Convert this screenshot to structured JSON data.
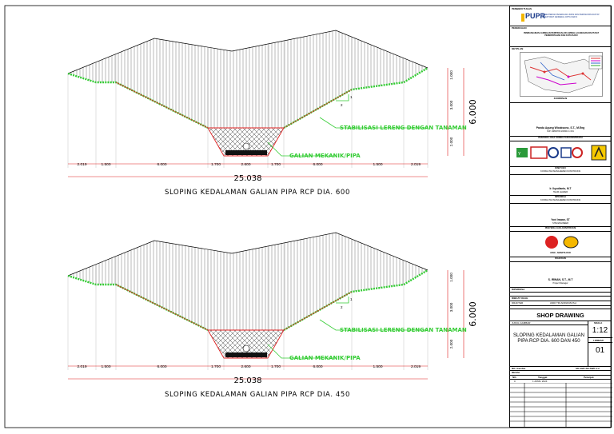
{
  "drawings": [
    {
      "caption": "SLOPING KEDALAMAN GALIAN PIPA RCP DIA. 600",
      "label_stabilisasi": "STABILISASI LERENG DENGAN TANAMAN",
      "label_galian": "GALIAN MEKANIK/PIPA",
      "slope_ratio_v": "1",
      "slope_ratio_h": "2",
      "dims_bottom": [
        "2.019",
        "1.500",
        "6.000",
        "1.700",
        "2.600",
        "1.700",
        "6.000",
        "1.500",
        "2.019"
      ],
      "dim_total": "25.038",
      "dims_right": [
        "1.000",
        "3.000",
        "2.000"
      ],
      "dim_height_total": "6.000"
    },
    {
      "caption": "SLOPING KEDALAMAN GALIAN PIPA RCP DIA. 450",
      "label_stabilisasi": "STABILISASI LERENG DENGAN TANAMAN",
      "label_galian": "GALIAN MEKANIK/PIPA",
      "slope_ratio_v": "1",
      "slope_ratio_h": "2",
      "dims_bottom": [
        "2.019",
        "1.500",
        "6.000",
        "1.700",
        "2.600",
        "1.700",
        "6.000",
        "1.500",
        "2.019"
      ],
      "dim_total": "25.038",
      "dims_right": [
        "1.000",
        "3.000",
        "2.000"
      ],
      "dim_height_total": "6.000"
    }
  ],
  "title_block": {
    "pemberi_tugas_label": "PEMBERI TUGAS",
    "logo_text": "PUPR",
    "ministry_text": "KEMENTERIAN PEKERJAAN UMUM DAN PERUMAHAN RAKYAT DIREKTORAT JENDERAL CIPTA KARYA",
    "pekerjaan_label": "PEKERJAAN",
    "pekerjaan_text": "PEMBANGUNAN JARINGAN PERPIPAAN AIR LIMBAH & KAWASAN IKN PUSAT PEMERINTAHAN DAN KOTA BARU",
    "keyplan_label": "KEYPLAN",
    "keyplan_caption": "KOORDINASI",
    "approver1_name": "Pandu Agung Wicaksono, S.T., M.Eng",
    "approver1_id": "NIP. 19800709 200604 1 001",
    "approver1_role": "PENYEDIA JASA KONSULTAN KONSTRUKSI",
    "disetujui_label": "DISETUJUI",
    "consultant_role": "KONSULTAN MANAJEMEN KONSTRUKSI",
    "approver2_name": "Ir. Ikyudianto, M.T",
    "approver2_title": "TEAM LEADER",
    "diperiksa_label": "DIPERIKSA",
    "consultant_role2": "KONSULTAN MANAJEMEN KONSTRUKSI",
    "approver3_name": "Yoni Irawan, ST",
    "approver3_title": "SITE ENGINEER",
    "contractor_role": "PENYEDIA JASA KONSTRUKSI",
    "contractor_name": "ADHI - AMARTA KSO",
    "dialog_label": "DIAJUKAN",
    "approver4_name": "S. IRWAN, S.T., M.T",
    "approver4_title": "Project Manager",
    "diperiksa2_label": "DIPERIKSA",
    "dibuat_label": "DIBUAT OLEH",
    "drafter_label": "DRAFTER",
    "drafter_name": "ANDI TRI ADRIANSYAH",
    "shop_drawing": "SHOP DRAWING",
    "judul_gambar_label": "JUDUL GAMBAR",
    "skala_label": "SKALA",
    "title_text": "SLOPING KEDALAMAN GALIAN PIPA RCP DIA. 600 DAN 450",
    "scale_value": "1:12",
    "lembar_label": "LEMBAR",
    "sheet_value": "01",
    "no_gambar_label": "NO. Gambar",
    "no_gambar_value": "SK-ABP-SD-SWP-1-2",
    "revisi_label": "REVISI",
    "rev_headers": [
      "NO.",
      "Tanggal",
      "Petunjuk"
    ],
    "rev_row": [
      "0",
      "1 APRIL 2024",
      ""
    ]
  },
  "colors": {
    "green": "#33cc33",
    "red": "#e02020",
    "line": "#000000"
  }
}
